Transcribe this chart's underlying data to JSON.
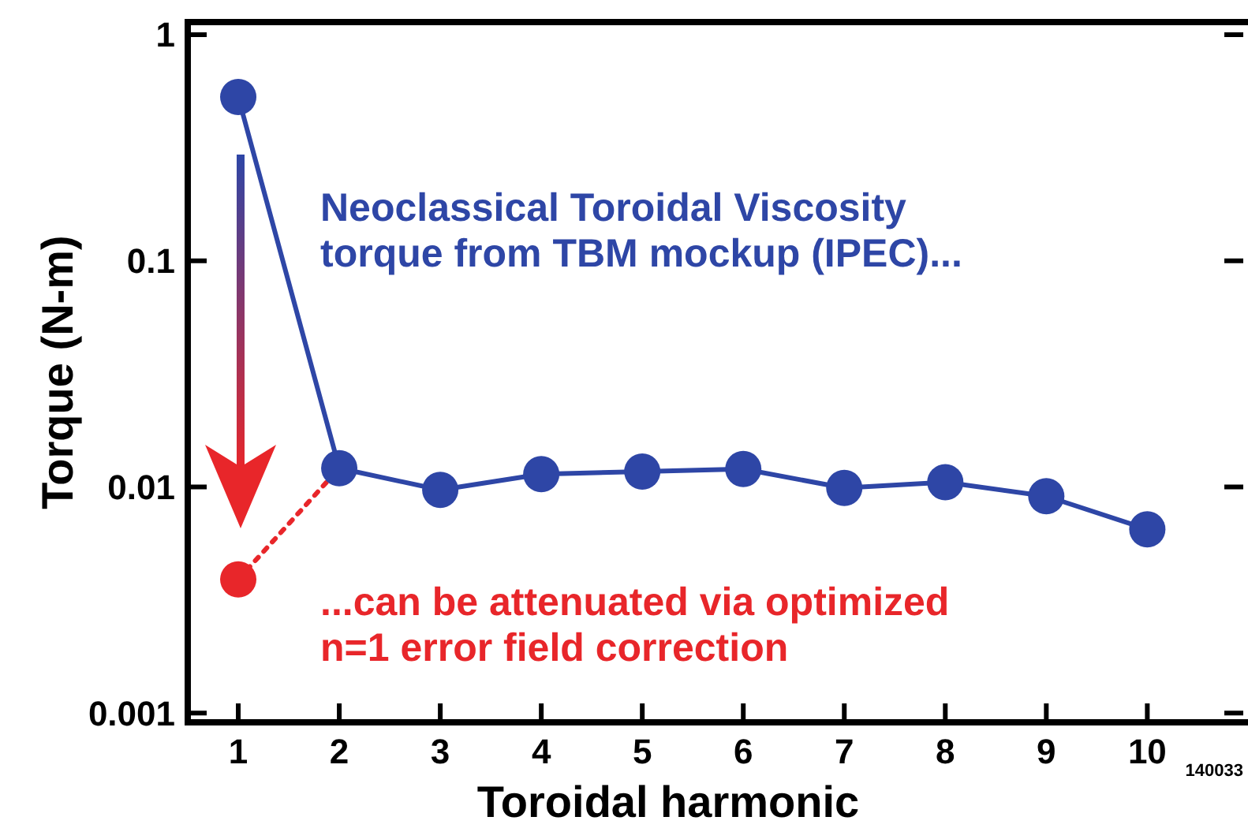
{
  "chart_data": {
    "type": "line",
    "xlabel": "Toroidal harmonic",
    "ylabel": "Torque (N-m)",
    "x": [
      1,
      2,
      3,
      4,
      5,
      6,
      7,
      8,
      9,
      10
    ],
    "series": [
      {
        "color": "#e8262a",
        "x": [
          1,
          2
        ],
        "values": [
          0.0039,
          0.0121
        ],
        "line_style": "dotted",
        "marker": "circle"
      },
      {
        "color": "#2e46a6",
        "values": [
          0.53,
          0.0121,
          0.0097,
          0.0114,
          0.0117,
          0.012,
          0.0099,
          0.0105,
          0.0091,
          0.0065
        ],
        "line_style": "solid",
        "marker": "circle"
      }
    ],
    "log": "y",
    "xlim": [
      0.5,
      10.95
    ],
    "ylim": [
      0.00091,
      1.137
    ],
    "xticks": [
      1,
      2,
      3,
      4,
      5,
      6,
      7,
      8,
      9,
      10
    ],
    "yticks": [
      0.001,
      0.01,
      0.1,
      1
    ],
    "grid": false,
    "annotations": [
      {
        "text": "Neoclassical Toroidal Viscosity\ntorque from TBM mockup (IPEC)..."
      },
      {
        "text": "...can be attenuated via optimized\nn=1 error field correction"
      },
      {
        "text": "140033"
      }
    ]
  }
}
